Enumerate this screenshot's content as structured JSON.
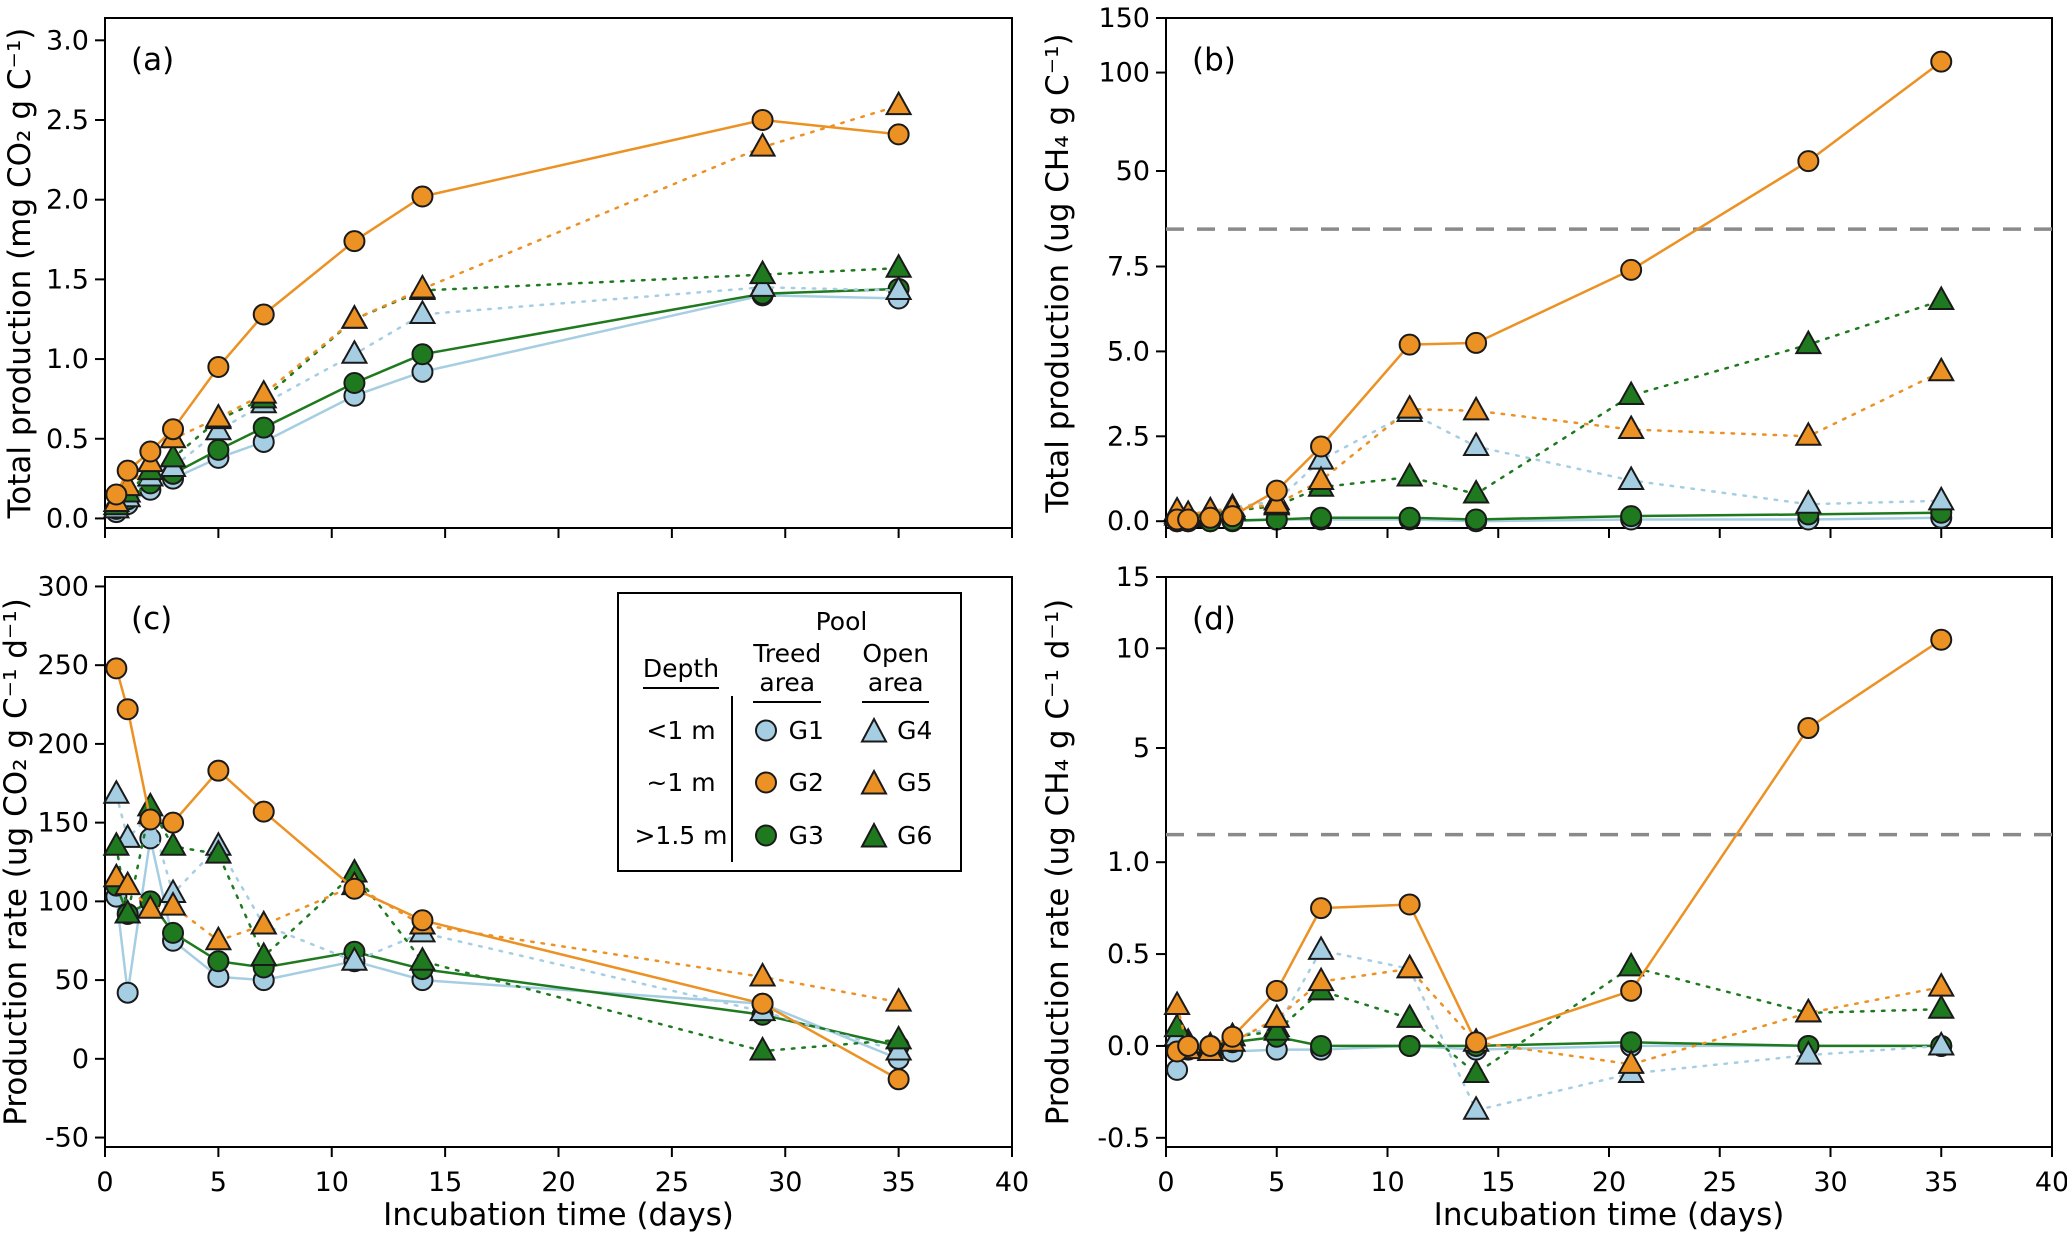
{
  "colors": {
    "blue": "#a6cee3",
    "orange": "#ec9123",
    "green": "#1f7a1f",
    "marker_stroke": "#1a1a1a",
    "axis": "#000000",
    "dash_line": "#8a8a8a"
  },
  "legend": {
    "title": "Pool",
    "depth_header": "Depth",
    "treed_header": "Treed\narea",
    "open_header": "Open\narea",
    "rows": [
      {
        "depth": "<1 m",
        "treed": {
          "code": "G1",
          "marker": "circle",
          "color": "blue"
        },
        "open": {
          "code": "G4",
          "marker": "triangle",
          "color": "blue"
        }
      },
      {
        "depth": "~1 m",
        "treed": {
          "code": "G2",
          "marker": "circle",
          "color": "orange"
        },
        "open": {
          "code": "G5",
          "marker": "triangle",
          "color": "orange"
        }
      },
      {
        "depth": ">1.5 m",
        "treed": {
          "code": "G3",
          "marker": "circle",
          "color": "green"
        },
        "open": {
          "code": "G6",
          "marker": "triangle",
          "color": "green"
        }
      }
    ]
  },
  "chart_data": [
    {
      "id": "a",
      "type": "line",
      "letter": "(a)",
      "y_label": "Total production (mg CO₂ g C⁻¹)",
      "x_label": null,
      "show_x_tick_labels": false,
      "x_range": [
        0,
        40
      ],
      "x_ticks": [
        {
          "v": 0,
          "label": "0"
        },
        {
          "v": 5,
          "label": "5"
        },
        {
          "v": 10,
          "label": "10"
        },
        {
          "v": 15,
          "label": "15"
        },
        {
          "v": 20,
          "label": "20"
        },
        {
          "v": 25,
          "label": "25"
        },
        {
          "v": 30,
          "label": "30"
        },
        {
          "v": 35,
          "label": "35"
        },
        {
          "v": 40,
          "label": "40"
        }
      ],
      "y_ticks": [
        {
          "v": 0,
          "label": "0.0"
        },
        {
          "v": 0.5,
          "label": "0.5"
        },
        {
          "v": 1,
          "label": "1.0"
        },
        {
          "v": 1.5,
          "label": "1.5"
        },
        {
          "v": 2,
          "label": "2.0"
        },
        {
          "v": 2.5,
          "label": "2.5"
        },
        {
          "v": 3,
          "label": "3.0"
        }
      ],
      "y_scale_points": [
        [
          -0.06,
          0
        ],
        [
          3.14,
          1
        ]
      ],
      "break_line_value": null,
      "x": [
        0.5,
        1,
        2,
        3,
        5,
        7,
        11,
        14,
        29,
        35
      ],
      "series": [
        {
          "name": "G1",
          "marker": "circle",
          "color": "blue",
          "line": "solid",
          "values": [
            0.04,
            0.09,
            0.18,
            0.25,
            0.38,
            0.48,
            0.77,
            0.92,
            1.4,
            1.38
          ]
        },
        {
          "name": "G3",
          "marker": "circle",
          "color": "green",
          "line": "solid",
          "values": [
            0.06,
            0.12,
            0.22,
            0.28,
            0.43,
            0.57,
            0.85,
            1.03,
            1.41,
            1.44
          ]
        },
        {
          "name": "G4",
          "marker": "triangle",
          "color": "blue",
          "line": "dotted",
          "values": [
            0.06,
            0.13,
            0.26,
            0.32,
            0.55,
            0.72,
            1.03,
            1.28,
            1.45,
            1.43
          ]
        },
        {
          "name": "G6",
          "marker": "triangle",
          "color": "green",
          "line": "dotted",
          "values": [
            0.08,
            0.16,
            0.3,
            0.38,
            0.62,
            0.75,
            1.25,
            1.43,
            1.53,
            1.57
          ]
        },
        {
          "name": "G5",
          "marker": "triangle",
          "color": "orange",
          "line": "dotted",
          "values": [
            0.1,
            0.2,
            0.35,
            0.5,
            0.63,
            0.78,
            1.25,
            1.44,
            2.33,
            2.59
          ]
        },
        {
          "name": "G2",
          "marker": "circle",
          "color": "orange",
          "line": "solid",
          "values": [
            0.15,
            0.3,
            0.42,
            0.56,
            0.95,
            1.28,
            1.74,
            2.02,
            2.5,
            2.41
          ]
        }
      ]
    },
    {
      "id": "b",
      "type": "line",
      "letter": "(b)",
      "y_label": "Total production (ug CH₄ g C⁻¹)",
      "x_label": null,
      "show_x_tick_labels": false,
      "x_range": [
        0,
        40
      ],
      "x_ticks": [
        {
          "v": 0,
          "label": "0"
        },
        {
          "v": 5,
          "label": "5"
        },
        {
          "v": 10,
          "label": "10"
        },
        {
          "v": 15,
          "label": "15"
        },
        {
          "v": 20,
          "label": "20"
        },
        {
          "v": 25,
          "label": "25"
        },
        {
          "v": 30,
          "label": "30"
        },
        {
          "v": 35,
          "label": "35"
        },
        {
          "v": 40,
          "label": "40"
        }
      ],
      "y_ticks": [
        {
          "v": 0,
          "label": "0.0"
        },
        {
          "v": 2.5,
          "label": "2.5"
        },
        {
          "v": 5,
          "label": "5.0"
        },
        {
          "v": 7.5,
          "label": "7.5"
        },
        {
          "v": 50,
          "label": "50"
        },
        {
          "v": 100,
          "label": "100"
        },
        {
          "v": 150,
          "label": "150"
        }
      ],
      "y_scale_points": [
        [
          -0.2,
          0
        ],
        [
          8.6,
          0.586
        ],
        [
          50,
          0.7
        ],
        [
          100,
          0.893
        ],
        [
          150,
          1.0
        ]
      ],
      "break_line_value": 8.6,
      "x": [
        0.5,
        1,
        2,
        3,
        5,
        7,
        11,
        14,
        21,
        29,
        35
      ],
      "series": [
        {
          "name": "G1",
          "marker": "circle",
          "color": "blue",
          "line": "solid",
          "values": [
            0,
            0,
            0,
            0,
            0.05,
            0.05,
            0.05,
            0,
            0.05,
            0.05,
            0.1
          ]
        },
        {
          "name": "G3",
          "marker": "circle",
          "color": "green",
          "line": "solid",
          "values": [
            0,
            0,
            0,
            0.02,
            0.05,
            0.1,
            0.1,
            0.05,
            0.15,
            0.2,
            0.25
          ]
        },
        {
          "name": "G4",
          "marker": "triangle",
          "color": "blue",
          "line": "dotted",
          "values": [
            0.15,
            0.1,
            0.3,
            0.4,
            0.6,
            1.8,
            3.2,
            2.2,
            1.2,
            0.5,
            0.6
          ]
        },
        {
          "name": "G6",
          "marker": "triangle",
          "color": "green",
          "line": "dotted",
          "values": [
            0.2,
            0.15,
            0.25,
            0.3,
            0.45,
            1.0,
            1.3,
            0.8,
            3.7,
            5.2,
            6.5
          ]
        },
        {
          "name": "G5",
          "marker": "triangle",
          "color": "orange",
          "line": "dotted",
          "values": [
            0.3,
            0.2,
            0.3,
            0.35,
            0.5,
            1.2,
            3.3,
            3.25,
            2.7,
            2.5,
            4.4
          ]
        },
        {
          "name": "G2",
          "marker": "circle",
          "color": "orange",
          "line": "solid",
          "values": [
            0.05,
            0.05,
            0.1,
            0.15,
            0.9,
            2.2,
            5.2,
            5.25,
            7.4,
            55,
            110
          ]
        }
      ]
    },
    {
      "id": "c",
      "type": "line",
      "letter": "(c)",
      "y_label": "Production rate (ug CO₂ g C⁻¹ d⁻¹)",
      "x_label": "Incubation time (days)",
      "show_x_tick_labels": true,
      "x_range": [
        0,
        40
      ],
      "x_ticks": [
        {
          "v": 0,
          "label": "0"
        },
        {
          "v": 5,
          "label": "5"
        },
        {
          "v": 10,
          "label": "10"
        },
        {
          "v": 15,
          "label": "15"
        },
        {
          "v": 20,
          "label": "20"
        },
        {
          "v": 25,
          "label": "25"
        },
        {
          "v": 30,
          "label": "30"
        },
        {
          "v": 35,
          "label": "35"
        },
        {
          "v": 40,
          "label": "40"
        }
      ],
      "y_ticks": [
        {
          "v": -50,
          "label": "-50"
        },
        {
          "v": 0,
          "label": "0"
        },
        {
          "v": 50,
          "label": "50"
        },
        {
          "v": 100,
          "label": "100"
        },
        {
          "v": 150,
          "label": "150"
        },
        {
          "v": 200,
          "label": "200"
        },
        {
          "v": 250,
          "label": "250"
        },
        {
          "v": 300,
          "label": "300"
        }
      ],
      "y_scale_points": [
        [
          -56,
          0
        ],
        [
          306,
          1
        ]
      ],
      "break_line_value": null,
      "x": [
        0.5,
        1,
        2,
        3,
        5,
        7,
        11,
        14,
        29,
        35
      ],
      "series": [
        {
          "name": "G1",
          "marker": "circle",
          "color": "blue",
          "line": "solid",
          "values": [
            103,
            42,
            140,
            75,
            52,
            50,
            62,
            50,
            35,
            0
          ]
        },
        {
          "name": "G3",
          "marker": "circle",
          "color": "green",
          "line": "solid",
          "values": [
            110,
            92,
            100,
            80,
            62,
            58,
            68,
            57,
            28,
            8
          ]
        },
        {
          "name": "G4",
          "marker": "triangle",
          "color": "blue",
          "line": "dotted",
          "values": [
            168,
            140,
            155,
            105,
            135,
            85,
            62,
            80,
            30,
            5
          ]
        },
        {
          "name": "G6",
          "marker": "triangle",
          "color": "green",
          "line": "dotted",
          "values": [
            135,
            92,
            160,
            135,
            130,
            65,
            118,
            62,
            5,
            12
          ]
        },
        {
          "name": "G5",
          "marker": "triangle",
          "color": "orange",
          "line": "dotted",
          "values": [
            115,
            110,
            95,
            97,
            75,
            85,
            110,
            85,
            52,
            36
          ]
        },
        {
          "name": "G2",
          "marker": "circle",
          "color": "orange",
          "line": "solid",
          "values": [
            248,
            222,
            152,
            150,
            183,
            157,
            108,
            88,
            35,
            -13
          ]
        }
      ]
    },
    {
      "id": "d",
      "type": "line",
      "letter": "(d)",
      "y_label": "Production rate (ug CH₄ g C⁻¹ d⁻¹)",
      "x_label": "Incubation time (days)",
      "show_x_tick_labels": true,
      "x_range": [
        0,
        40
      ],
      "x_ticks": [
        {
          "v": 0,
          "label": "0"
        },
        {
          "v": 5,
          "label": "5"
        },
        {
          "v": 10,
          "label": "10"
        },
        {
          "v": 15,
          "label": "15"
        },
        {
          "v": 20,
          "label": "20"
        },
        {
          "v": 25,
          "label": "25"
        },
        {
          "v": 30,
          "label": "30"
        },
        {
          "v": 35,
          "label": "35"
        },
        {
          "v": 40,
          "label": "40"
        }
      ],
      "y_ticks": [
        {
          "v": -0.5,
          "label": "-0.5"
        },
        {
          "v": 0,
          "label": "0.0"
        },
        {
          "v": 0.5,
          "label": "0.5"
        },
        {
          "v": 1,
          "label": "1.0"
        },
        {
          "v": 5,
          "label": "5"
        },
        {
          "v": 10,
          "label": "10"
        },
        {
          "v": 15,
          "label": "15"
        }
      ],
      "y_scale_points": [
        [
          -0.55,
          0
        ],
        [
          1.15,
          0.548
        ],
        [
          5,
          0.7
        ],
        [
          10,
          0.875
        ],
        [
          15,
          1.0
        ]
      ],
      "break_line_value": 1.15,
      "x": [
        0.5,
        1,
        2,
        3,
        5,
        7,
        11,
        14,
        21,
        29,
        35
      ],
      "series": [
        {
          "name": "G1",
          "marker": "circle",
          "color": "blue",
          "line": "solid",
          "values": [
            -0.13,
            0,
            0,
            -0.03,
            -0.02,
            -0.02,
            0,
            -0.02,
            0,
            0,
            0
          ]
        },
        {
          "name": "G3",
          "marker": "circle",
          "color": "green",
          "line": "solid",
          "values": [
            -0.02,
            -0.02,
            0,
            0.02,
            0.05,
            0,
            0,
            0,
            0.02,
            0,
            0
          ]
        },
        {
          "name": "G4",
          "marker": "triangle",
          "color": "blue",
          "line": "dotted",
          "values": [
            0.05,
            0.02,
            0,
            0.05,
            0.1,
            0.52,
            0.42,
            -0.35,
            -0.15,
            -0.05,
            0
          ]
        },
        {
          "name": "G6",
          "marker": "triangle",
          "color": "green",
          "line": "dotted",
          "values": [
            0.1,
            0,
            -0.02,
            0.05,
            0.08,
            0.3,
            0.15,
            -0.15,
            0.43,
            0.18,
            0.2
          ]
        },
        {
          "name": "G5",
          "marker": "triangle",
          "color": "orange",
          "line": "dotted",
          "values": [
            0.22,
            -0.02,
            -0.03,
            0.02,
            0.15,
            0.35,
            0.42,
            0.02,
            -0.1,
            0.18,
            0.32
          ]
        },
        {
          "name": "G2",
          "marker": "circle",
          "color": "orange",
          "line": "solid",
          "values": [
            -0.03,
            0,
            0,
            0.05,
            0.3,
            0.75,
            0.77,
            0.02,
            0.3,
            6.0,
            10.6
          ]
        }
      ]
    }
  ]
}
